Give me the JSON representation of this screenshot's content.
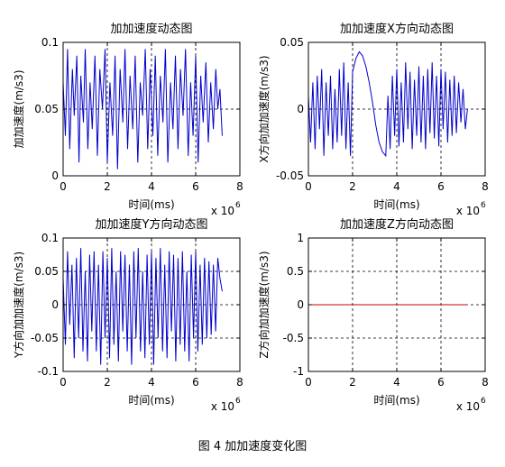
{
  "figure": {
    "caption": "图 4  加加速度变化图",
    "line_color": "#0000cc",
    "zero_line_color": "#cc0000"
  },
  "chart_data": [
    {
      "type": "line",
      "title": "加加速度动态图",
      "xlabel": "时间(ms)",
      "ylabel": "加加速度(m/s3)",
      "x_multiplier_label": "x 10",
      "x_multiplier_exp": "6",
      "xlim": [
        0,
        8
      ],
      "ylim": [
        0,
        0.1
      ],
      "x_ticks": [
        "0",
        "2",
        "4",
        "6",
        "8"
      ],
      "y_ticks": [
        "0",
        "0.05",
        "0.1"
      ],
      "grid": true,
      "series": [
        {
          "x": [
            0,
            0.1,
            0.2,
            0.3,
            0.42,
            0.5,
            0.62,
            0.72,
            0.8,
            0.92,
            1.0,
            1.12,
            1.22,
            1.32,
            1.44,
            1.55,
            1.66,
            1.78,
            1.9,
            2.0,
            2.12,
            2.24,
            2.35,
            2.46,
            2.58,
            2.7,
            2.8,
            2.92,
            3.03,
            3.15,
            3.26,
            3.38,
            3.49,
            3.6,
            3.72,
            3.83,
            3.94,
            4.06,
            4.17,
            4.28,
            4.4,
            4.52,
            4.63,
            4.74,
            4.86,
            4.97,
            5.08,
            5.2,
            5.31,
            5.43,
            5.54,
            5.66,
            5.77,
            5.88,
            6.0,
            6.11,
            6.23,
            6.34,
            6.46,
            6.57,
            6.68,
            6.8,
            6.91,
            7.0,
            7.1,
            7.2
          ],
          "y": [
            0.07,
            0.03,
            0.095,
            0.02,
            0.08,
            0.045,
            0.09,
            0.01,
            0.075,
            0.04,
            0.095,
            0.02,
            0.07,
            0.035,
            0.09,
            0.015,
            0.08,
            0.05,
            0.095,
            0.01,
            0.07,
            0.03,
            0.09,
            0.005,
            0.08,
            0.04,
            0.095,
            0.02,
            0.075,
            0.035,
            0.09,
            0.01,
            0.07,
            0.045,
            0.095,
            0.02,
            0.08,
            0.03,
            0.09,
            0.015,
            0.075,
            0.04,
            0.095,
            0.01,
            0.07,
            0.035,
            0.09,
            0.02,
            0.08,
            0.045,
            0.095,
            0.015,
            0.07,
            0.03,
            0.09,
            0.01,
            0.075,
            0.04,
            0.085,
            0.025,
            0.07,
            0.035,
            0.08,
            0.05,
            0.065,
            0.03
          ]
        }
      ]
    },
    {
      "type": "line",
      "title": "加加速度X方向动态图",
      "xlabel": "时间(ms)",
      "ylabel": "X方向加加速度(m/s3)",
      "x_multiplier_label": "x 10",
      "x_multiplier_exp": "6",
      "xlim": [
        0,
        8
      ],
      "ylim": [
        -0.05,
        0.05
      ],
      "x_ticks": [
        "0",
        "2",
        "4",
        "6",
        "8"
      ],
      "y_ticks": [
        "-0.05",
        "0",
        "0.05"
      ],
      "grid": true,
      "series": [
        {
          "x": [
            0,
            0.1,
            0.2,
            0.3,
            0.4,
            0.5,
            0.6,
            0.7,
            0.8,
            0.9,
            1.0,
            1.1,
            1.2,
            1.3,
            1.4,
            1.5,
            1.6,
            1.7,
            1.8,
            1.9,
            2.0,
            2.15,
            2.3,
            2.45,
            2.6,
            2.75,
            2.9,
            3.05,
            3.2,
            3.35,
            3.5,
            3.6,
            3.7,
            3.8,
            3.9,
            4.0,
            4.1,
            4.2,
            4.3,
            4.4,
            4.5,
            4.6,
            4.7,
            4.8,
            4.9,
            5.0,
            5.1,
            5.2,
            5.3,
            5.4,
            5.5,
            5.6,
            5.7,
            5.8,
            5.9,
            6.0,
            6.1,
            6.2,
            6.3,
            6.4,
            6.5,
            6.6,
            6.7,
            6.8,
            6.9,
            7.0,
            7.1,
            7.2
          ],
          "y": [
            0.01,
            -0.025,
            0.02,
            -0.03,
            0.025,
            -0.015,
            0.03,
            -0.035,
            0.02,
            -0.02,
            0.025,
            -0.03,
            0.015,
            -0.025,
            0.03,
            -0.02,
            0.035,
            -0.03,
            0.02,
            -0.035,
            0.028,
            0.038,
            0.043,
            0.04,
            0.032,
            0.02,
            0.005,
            -0.012,
            -0.025,
            -0.032,
            -0.035,
            0.01,
            -0.03,
            0.025,
            -0.02,
            0.03,
            -0.028,
            0.02,
            -0.025,
            0.035,
            -0.015,
            0.028,
            -0.03,
            0.022,
            -0.02,
            0.032,
            -0.025,
            0.025,
            -0.03,
            0.03,
            -0.018,
            0.035,
            -0.022,
            0.025,
            -0.028,
            0.03,
            -0.015,
            0.028,
            -0.025,
            0.022,
            -0.02,
            0.025,
            -0.018,
            0.02,
            -0.01,
            0.015,
            -0.015,
            0.0
          ]
        }
      ]
    },
    {
      "type": "line",
      "title": "加加速度Y方向动态图",
      "xlabel": "时间(ms)",
      "ylabel": "Y方向加加速度(m/s3)",
      "x_multiplier_label": "x 10",
      "x_multiplier_exp": "6",
      "xlim": [
        0,
        8
      ],
      "ylim": [
        -0.1,
        0.1
      ],
      "x_ticks": [
        "0",
        "2",
        "4",
        "6",
        "8"
      ],
      "y_ticks": [
        "-0.1",
        "-0.05",
        "0",
        "0.05",
        "0.1"
      ],
      "grid": true,
      "series": [
        {
          "x": [
            0,
            0.1,
            0.2,
            0.3,
            0.4,
            0.5,
            0.6,
            0.7,
            0.8,
            0.9,
            1.0,
            1.1,
            1.2,
            1.3,
            1.4,
            1.5,
            1.6,
            1.7,
            1.8,
            1.9,
            2.0,
            2.1,
            2.2,
            2.3,
            2.4,
            2.5,
            2.6,
            2.7,
            2.8,
            2.9,
            3.0,
            3.1,
            3.2,
            3.3,
            3.4,
            3.5,
            3.6,
            3.7,
            3.8,
            3.9,
            4.0,
            4.1,
            4.2,
            4.3,
            4.4,
            4.5,
            4.6,
            4.7,
            4.8,
            4.9,
            5.0,
            5.1,
            5.2,
            5.3,
            5.4,
            5.5,
            5.6,
            5.7,
            5.8,
            5.9,
            6.0,
            6.1,
            6.2,
            6.3,
            6.4,
            6.5,
            6.6,
            6.7,
            6.8,
            6.9,
            7.0,
            7.1,
            7.2
          ],
          "y": [
            0.04,
            -0.06,
            0.08,
            -0.03,
            0.06,
            -0.08,
            0.07,
            -0.05,
            0.085,
            -0.07,
            0.05,
            -0.085,
            0.075,
            -0.04,
            0.08,
            -0.07,
            0.06,
            -0.09,
            0.08,
            -0.05,
            0.07,
            -0.08,
            0.085,
            -0.06,
            0.05,
            -0.085,
            0.08,
            -0.04,
            0.075,
            -0.07,
            0.06,
            -0.09,
            0.08,
            -0.05,
            0.085,
            -0.07,
            0.05,
            -0.08,
            0.075,
            -0.06,
            0.08,
            -0.09,
            0.07,
            -0.05,
            0.085,
            -0.07,
            0.06,
            -0.08,
            0.08,
            -0.04,
            0.075,
            -0.085,
            0.07,
            -0.06,
            0.08,
            -0.07,
            0.05,
            -0.085,
            0.075,
            -0.05,
            0.08,
            -0.07,
            0.06,
            -0.06,
            0.07,
            -0.05,
            0.065,
            -0.045,
            0.06,
            -0.04,
            0.07,
            0.04,
            0.02
          ]
        }
      ]
    },
    {
      "type": "line",
      "title": "加加速度Z方向动态图",
      "xlabel": "时间(ms)",
      "ylabel": "Z方向加加速度(m/s3)",
      "x_multiplier_label": "x 10",
      "x_multiplier_exp": "6",
      "xlim": [
        0,
        8
      ],
      "ylim": [
        -1,
        1
      ],
      "x_ticks": [
        "0",
        "2",
        "4",
        "6",
        "8"
      ],
      "y_ticks": [
        "-1",
        "-0.5",
        "0",
        "0.5",
        "1"
      ],
      "grid": true,
      "series": [
        {
          "x": [
            0,
            7.2
          ],
          "y": [
            0,
            0
          ]
        }
      ]
    }
  ]
}
